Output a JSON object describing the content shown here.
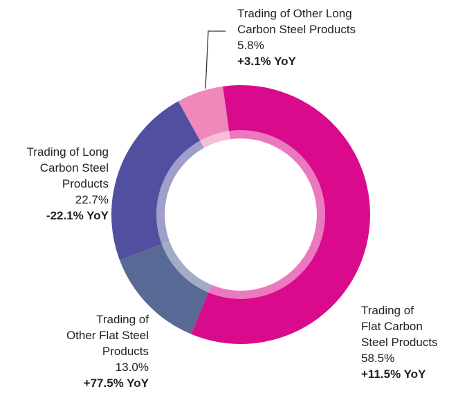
{
  "chart_data": {
    "type": "pie",
    "donut": true,
    "categories": [
      "Trading of\nFlat Carbon\nSteel Products",
      "Trading of\nOther Flat Steel\nProducts",
      "Trading of Long\nCarbon Steel\nProducts",
      "Trading of Other Long\nCarbon Steel Products"
    ],
    "values": [
      58.5,
      13.0,
      22.7,
      5.8
    ],
    "value_labels": [
      "58.5%",
      "13.0%",
      "22.7%",
      "5.8%"
    ],
    "yoy_labels": [
      "+11.5% YoY",
      "+77.5% YoY",
      "-22.1% YoY",
      "+3.1% YoY"
    ],
    "colors": [
      "#d90b8c",
      "#586996",
      "#534fa0",
      "#f088bb"
    ]
  }
}
